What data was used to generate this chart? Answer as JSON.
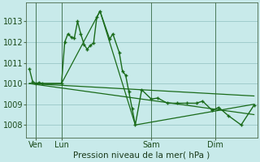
{
  "background_color": "#c8eaea",
  "grid_color": "#a0cccc",
  "line_color": "#1a6b1a",
  "xlabel": "Pression niveau de la mer( hPa )",
  "ylim": [
    1007.4,
    1013.9
  ],
  "yticks": [
    1008,
    1009,
    1010,
    1011,
    1012,
    1013
  ],
  "xlim": [
    0,
    72
  ],
  "day_positions": [
    3,
    11,
    39,
    59
  ],
  "day_labels": [
    "Ven",
    "Lun",
    "Sam",
    "Dim"
  ],
  "vline_positions": [
    3,
    11,
    39,
    59
  ],
  "series1_x": [
    1,
    2,
    3,
    4,
    5,
    11,
    12,
    13,
    14,
    15,
    16,
    17,
    18,
    19,
    20,
    21,
    22,
    23,
    26,
    27,
    29,
    30,
    31,
    32,
    33,
    34,
    36,
    39,
    41,
    44,
    47,
    50,
    53,
    55,
    58,
    60,
    63,
    67,
    71
  ],
  "series1_y": [
    1010.7,
    1010.1,
    1010.0,
    1010.05,
    1010.0,
    1010.0,
    1012.0,
    1012.4,
    1012.25,
    1012.2,
    1013.0,
    1012.4,
    1011.9,
    1011.65,
    1011.85,
    1011.95,
    1013.2,
    1013.5,
    1012.15,
    1012.4,
    1011.5,
    1010.6,
    1010.4,
    1009.6,
    1008.8,
    1008.0,
    1009.7,
    1009.25,
    1009.3,
    1009.05,
    1009.05,
    1009.05,
    1009.05,
    1009.15,
    1008.7,
    1008.85,
    1008.45,
    1008.0,
    1008.95
  ],
  "series2_x": [
    1,
    11,
    23,
    34,
    71
  ],
  "series2_y": [
    1010.0,
    1010.0,
    1013.5,
    1008.0,
    1009.0
  ],
  "series3_x": [
    1,
    71
  ],
  "series3_y": [
    1010.0,
    1009.4
  ],
  "series4_x": [
    1,
    71
  ],
  "series4_y": [
    1010.0,
    1008.5
  ]
}
